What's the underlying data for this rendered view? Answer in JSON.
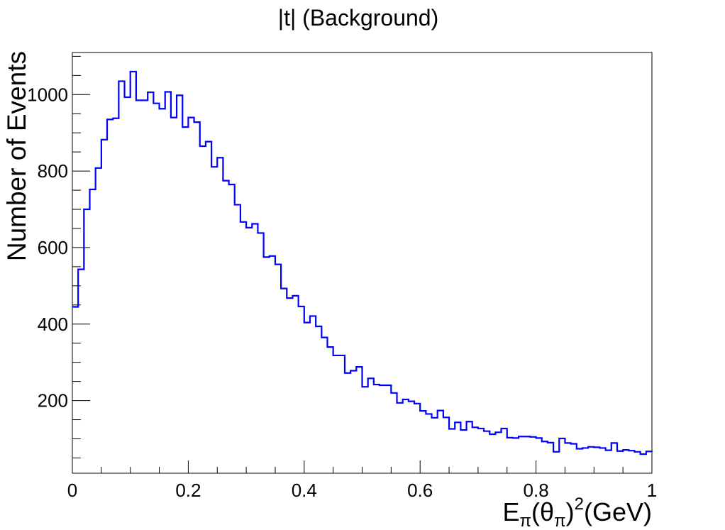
{
  "chart_data": {
    "type": "histogram",
    "title": "|t| (Background)",
    "ylabel": "Number of Events",
    "xlabel": {
      "base": "E",
      "sub1": "π",
      "mid": "(θ",
      "sub2": "π",
      "close": ")",
      "sup": "2",
      "unit": "(GeV)"
    },
    "xlim": [
      0,
      1
    ],
    "ylim": [
      10,
      1110
    ],
    "x_ticks": [
      {
        "value": 0,
        "label": "0"
      },
      {
        "value": 0.2,
        "label": "0.2"
      },
      {
        "value": 0.4,
        "label": "0.4"
      },
      {
        "value": 0.6,
        "label": "0.6"
      },
      {
        "value": 0.8,
        "label": "0.8"
      },
      {
        "value": 1,
        "label": "1"
      }
    ],
    "y_ticks": [
      {
        "value": 200,
        "label": "200"
      },
      {
        "value": 400,
        "label": "400"
      },
      {
        "value": 600,
        "label": "600"
      },
      {
        "value": 800,
        "label": "800"
      },
      {
        "value": 1000,
        "label": "1000"
      }
    ],
    "bin_width": 0.01,
    "bin_start": 0,
    "series": [
      {
        "color": "#0000ff",
        "values": [
          445,
          543,
          700,
          752,
          808,
          882,
          935,
          938,
          1035,
          993,
          1060,
          985,
          985,
          1006,
          977,
          963,
          1007,
          940,
          998,
          915,
          940,
          928,
          865,
          877,
          811,
          835,
          775,
          765,
          712,
          667,
          652,
          662,
          638,
          575,
          578,
          556,
          493,
          468,
          474,
          446,
          404,
          421,
          394,
          365,
          340,
          318,
          318,
          272,
          278,
          288,
          236,
          258,
          242,
          240,
          240,
          220,
          194,
          203,
          198,
          192,
          173,
          165,
          155,
          174,
          156,
          126,
          143,
          123,
          145,
          130,
          127,
          120,
          112,
          117,
          127,
          103,
          102,
          106,
          106,
          105,
          102,
          93,
          90,
          66,
          101,
          89,
          87,
          74,
          76,
          79,
          78,
          76,
          70,
          89,
          68,
          71,
          69,
          66,
          60,
          67,
          66
        ]
      }
    ]
  }
}
